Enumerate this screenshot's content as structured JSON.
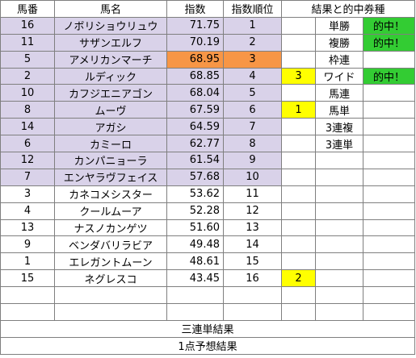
{
  "headers": {
    "umaban": "馬番",
    "bamei": "馬名",
    "shisu": "指数",
    "juni": "指数順位",
    "kekka": "結果と的中券種"
  },
  "rows": [
    {
      "umaban": "16",
      "bamei": "ノボリショウリュウ",
      "shisu": "71.75",
      "juni": "1",
      "result": "",
      "type": "単勝",
      "hit": "的中！"
    },
    {
      "umaban": "11",
      "bamei": "サザンエルフ",
      "shisu": "70.19",
      "juni": "2",
      "result": "",
      "type": "複勝",
      "hit": "的中！"
    },
    {
      "umaban": "5",
      "bamei": "アメリカンマーチ",
      "shisu": "68.95",
      "juni": "3",
      "result": "",
      "type": "枠連",
      "hit": ""
    },
    {
      "umaban": "2",
      "bamei": "ルディック",
      "shisu": "68.85",
      "juni": "4",
      "result": "3",
      "type": "ワイド",
      "hit": "的中！"
    },
    {
      "umaban": "10",
      "bamei": "カフジエニアゴン",
      "shisu": "68.04",
      "juni": "5",
      "result": "",
      "type": "馬連",
      "hit": ""
    },
    {
      "umaban": "8",
      "bamei": "ムーヴ",
      "shisu": "67.59",
      "juni": "6",
      "result": "1",
      "type": "馬単",
      "hit": ""
    },
    {
      "umaban": "14",
      "bamei": "アガシ",
      "shisu": "64.59",
      "juni": "7",
      "result": "",
      "type": "3連複",
      "hit": ""
    },
    {
      "umaban": "6",
      "bamei": "カミーロ",
      "shisu": "62.77",
      "juni": "8",
      "result": "",
      "type": "3連単",
      "hit": ""
    },
    {
      "umaban": "12",
      "bamei": "カンパニョーラ",
      "shisu": "61.54",
      "juni": "9",
      "result": "",
      "type": "",
      "hit": ""
    },
    {
      "umaban": "7",
      "bamei": "エンヤラヴフェイス",
      "shisu": "57.68",
      "juni": "10",
      "result": "",
      "type": "",
      "hit": ""
    },
    {
      "umaban": "3",
      "bamei": "カネコメシスター",
      "shisu": "53.62",
      "juni": "11",
      "result": "",
      "type": "",
      "hit": ""
    },
    {
      "umaban": "4",
      "bamei": "クールムーア",
      "shisu": "52.28",
      "juni": "12",
      "result": "",
      "type": "",
      "hit": ""
    },
    {
      "umaban": "13",
      "bamei": "ナスノカンゲツ",
      "shisu": "51.60",
      "juni": "13",
      "result": "",
      "type": "",
      "hit": ""
    },
    {
      "umaban": "9",
      "bamei": "ベンダバリラビア",
      "shisu": "49.48",
      "juni": "14",
      "result": "",
      "type": "",
      "hit": ""
    },
    {
      "umaban": "1",
      "bamei": "エレガントムーン",
      "shisu": "48.61",
      "juni": "15",
      "result": "",
      "type": "",
      "hit": ""
    },
    {
      "umaban": "15",
      "bamei": "ネグレスコ",
      "shisu": "43.45",
      "juni": "16",
      "result": "2",
      "type": "",
      "hit": ""
    },
    {
      "umaban": "",
      "bamei": "",
      "shisu": "",
      "juni": "",
      "result": "",
      "type": "",
      "hit": ""
    },
    {
      "umaban": "",
      "bamei": "",
      "shisu": "",
      "juni": "",
      "result": "",
      "type": "",
      "hit": ""
    }
  ],
  "footer": {
    "sanrentan": "三連単結果",
    "yoso": "1点予想結果"
  },
  "colors": {
    "lavender": "#d9d2e9",
    "orange": "#f79646",
    "yellow": "#ffff00",
    "green": "#33cc33",
    "grid": "#7f7f7f"
  }
}
